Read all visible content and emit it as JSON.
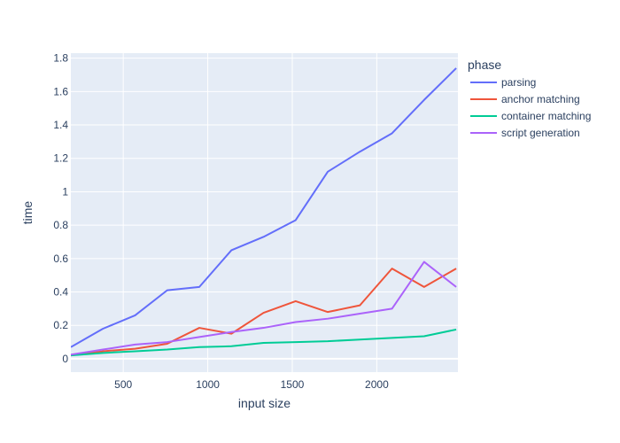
{
  "chart_data": {
    "type": "line",
    "xlabel": "input size",
    "ylabel": "time",
    "xlim": [
      190,
      2480
    ],
    "ylim": [
      -0.08,
      1.83
    ],
    "x_ticks": [
      500,
      1000,
      1500,
      2000
    ],
    "x_tick_labels": [
      "500",
      "1000",
      "1500",
      "2000"
    ],
    "y_ticks": [
      0,
      0.2,
      0.4,
      0.6,
      0.8,
      1,
      1.2,
      1.4,
      1.6,
      1.8
    ],
    "y_tick_labels": [
      "0",
      "0.2",
      "0.4",
      "0.6",
      "0.8",
      "1",
      "1.2",
      "1.4",
      "1.6",
      "1.8"
    ],
    "grid": true,
    "background": "#e5ecf6",
    "legend": {
      "title": "phase",
      "placement": "right"
    },
    "x": [
      190,
      380,
      570,
      760,
      950,
      1140,
      1330,
      1520,
      1710,
      1900,
      2090,
      2280,
      2470
    ],
    "series": [
      {
        "name": "parsing",
        "color": "#636efa",
        "values": [
          0.07,
          0.18,
          0.26,
          0.41,
          0.43,
          0.65,
          0.73,
          0.83,
          1.12,
          1.24,
          1.35,
          1.55,
          1.74
        ]
      },
      {
        "name": "anchor matching",
        "color": "#ef553b",
        "values": [
          0.02,
          0.045,
          0.06,
          0.09,
          0.185,
          0.15,
          0.275,
          0.345,
          0.28,
          0.32,
          0.54,
          0.43,
          0.54
        ]
      },
      {
        "name": "container matching",
        "color": "#00cc96",
        "values": [
          0.02,
          0.035,
          0.045,
          0.055,
          0.07,
          0.075,
          0.095,
          0.1,
          0.105,
          0.115,
          0.125,
          0.135,
          0.175
        ]
      },
      {
        "name": "script generation",
        "color": "#ab63fa",
        "values": [
          0.025,
          0.055,
          0.085,
          0.1,
          0.13,
          0.16,
          0.185,
          0.22,
          0.24,
          0.27,
          0.3,
          0.58,
          0.43
        ]
      }
    ]
  }
}
